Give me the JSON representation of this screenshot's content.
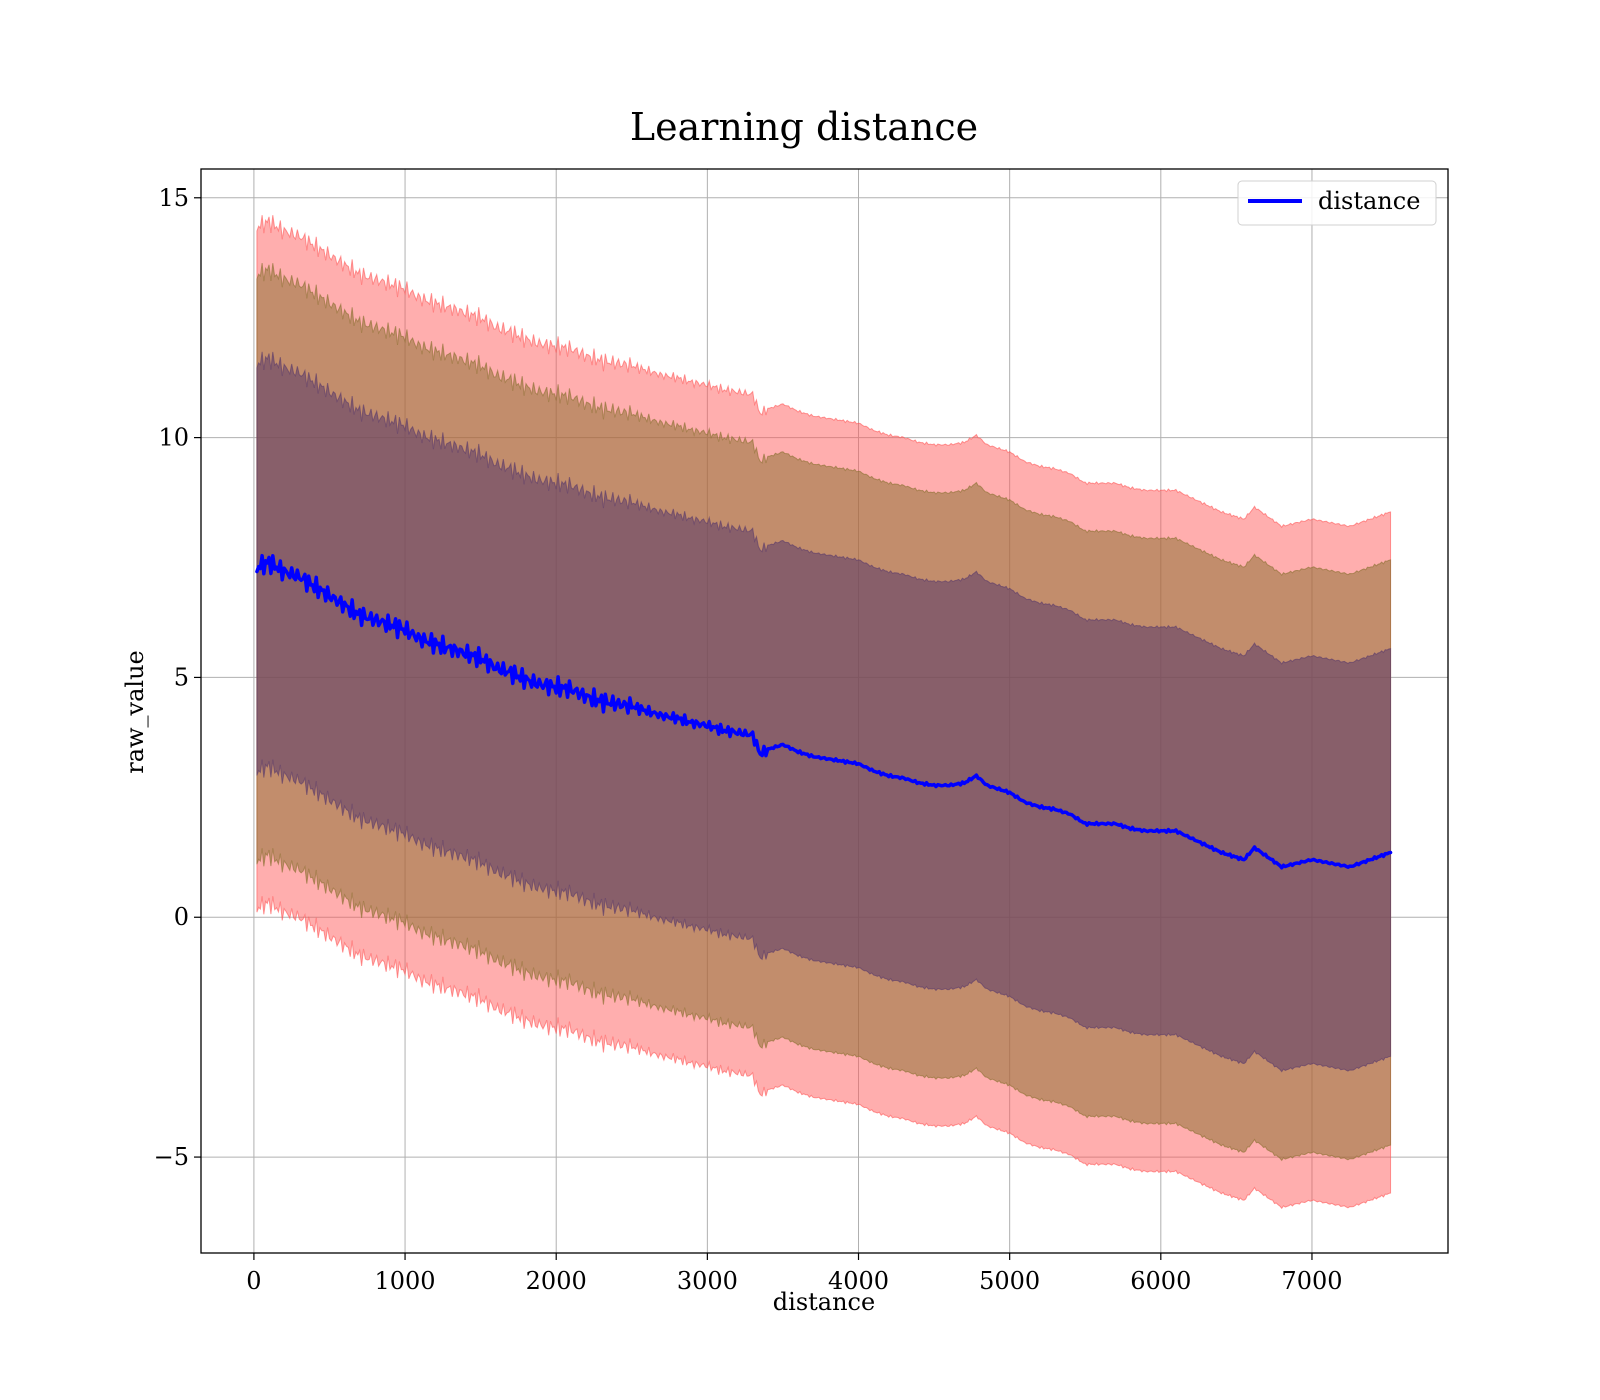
{
  "chart_data": {
    "type": "line",
    "title": "Learning distance",
    "xlabel": "distance",
    "ylabel": "raw_value",
    "xlim": [
      -350,
      7900
    ],
    "ylim": [
      -7,
      15.6
    ],
    "xticks": [
      0,
      1000,
      2000,
      3000,
      4000,
      5000,
      6000,
      7000
    ],
    "xtick_labels": [
      "0",
      "1000",
      "2000",
      "3000",
      "4000",
      "5000",
      "6000",
      "7000"
    ],
    "yticks": [
      -5,
      0,
      5,
      10,
      15
    ],
    "ytick_labels": [
      "−5",
      "0",
      "5",
      "10",
      "15"
    ],
    "grid": true,
    "legend": {
      "position": "top-right",
      "entries": [
        "distance"
      ]
    },
    "colors": {
      "line": "#0000ff",
      "outer_band": "#ff5555",
      "middle_band": "#8b7030",
      "inner_band": "#5a3a6a",
      "grid": "#b0b0b0"
    },
    "series": [
      {
        "name": "distance",
        "x": [
          20,
          100,
          200,
          300,
          400,
          500,
          600,
          700,
          800,
          900,
          1000,
          1100,
          1200,
          1300,
          1400,
          1500,
          1600,
          1700,
          1800,
          1900,
          2000,
          2100,
          2200,
          2300,
          2400,
          2500,
          2600,
          2700,
          2800,
          2900,
          3000,
          3100,
          3200,
          3300,
          3350,
          3400,
          3500,
          3600,
          3700,
          3800,
          3900,
          4000,
          4100,
          4200,
          4300,
          4400,
          4500,
          4600,
          4700,
          4780,
          4850,
          5000,
          5100,
          5200,
          5300,
          5400,
          5500,
          5600,
          5700,
          5800,
          5900,
          6000,
          6100,
          6200,
          6300,
          6400,
          6550,
          6620,
          6800,
          7000,
          7250,
          7520
        ],
        "y": [
          7.3,
          7.4,
          7.2,
          7.1,
          6.9,
          6.7,
          6.5,
          6.3,
          6.2,
          6.1,
          6.0,
          5.8,
          5.7,
          5.6,
          5.5,
          5.4,
          5.2,
          5.1,
          4.95,
          4.85,
          4.8,
          4.75,
          4.6,
          4.5,
          4.45,
          4.4,
          4.3,
          4.2,
          4.15,
          4.05,
          4.0,
          3.9,
          3.85,
          3.8,
          3.4,
          3.5,
          3.6,
          3.45,
          3.35,
          3.3,
          3.25,
          3.2,
          3.05,
          2.95,
          2.9,
          2.8,
          2.75,
          2.75,
          2.8,
          2.95,
          2.75,
          2.6,
          2.4,
          2.3,
          2.25,
          2.15,
          1.95,
          1.95,
          1.95,
          1.85,
          1.8,
          1.8,
          1.8,
          1.65,
          1.5,
          1.35,
          1.2,
          1.45,
          1.05,
          1.2,
          1.05,
          1.35
        ]
      }
    ],
    "bands": [
      {
        "label_color": "outer_band",
        "offset": 7.1
      },
      {
        "label_color": "middle_band",
        "offset": 6.1
      },
      {
        "label_color": "inner_band",
        "offset": 4.25
      }
    ]
  }
}
